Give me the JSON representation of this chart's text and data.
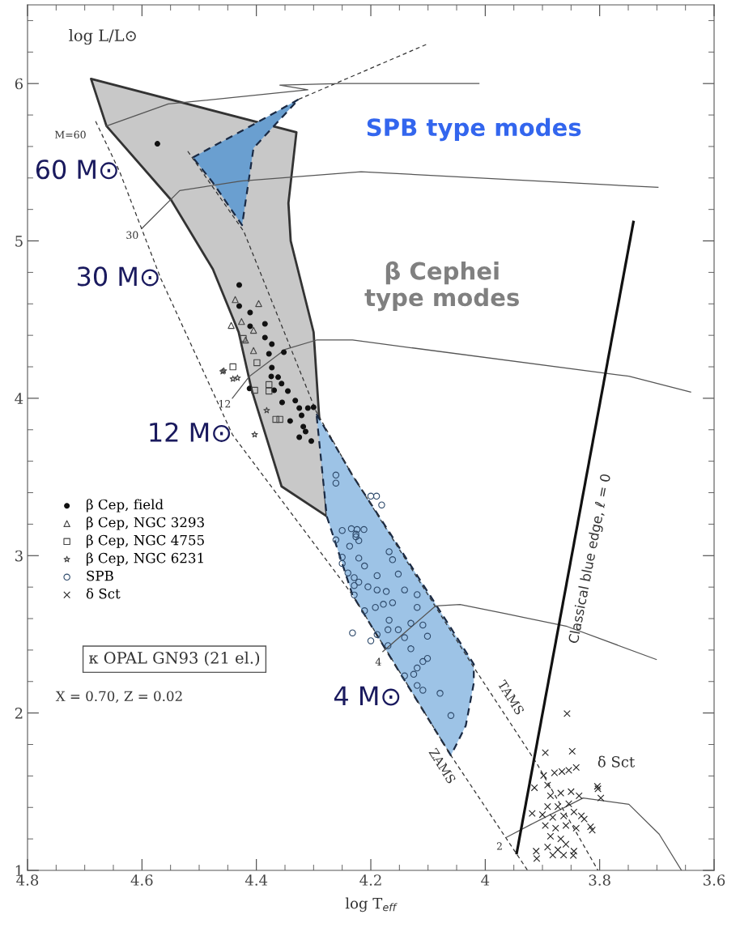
{
  "chart_data": {
    "type": "scatter",
    "xlabel": "log T$_{eff}$",
    "ylabel": "log L/L⊙",
    "xlim": [
      4.8,
      3.6
    ],
    "ylim": [
      1,
      6.5
    ],
    "xticks": [
      4.8,
      4.6,
      4.4,
      4.2,
      4,
      3.8,
      3.6
    ],
    "yticks": [
      1,
      2,
      3,
      4,
      5,
      6
    ],
    "legend": "left",
    "series": [
      {
        "type": "area",
        "color": "#c8c8c8",
        "line_style": "solid",
        "x": [
          4.689,
          4.33,
          4.344,
          4.34,
          4.3,
          4.291,
          4.277,
          4.356,
          4.408,
          4.431,
          4.476,
          4.549,
          4.662
        ],
        "values": [
          6.03,
          5.69,
          5.24,
          5.0,
          4.42,
          3.92,
          3.25,
          3.44,
          4.05,
          4.42,
          4.82,
          5.26,
          5.73
        ]
      },
      {
        "type": "area",
        "color": "#9dc3e6",
        "line_style": "dashed",
        "x": [
          4.295,
          4.277,
          4.232,
          4.15,
          4.06,
          4.034,
          4.02,
          4.02,
          4.034,
          4.06,
          4.15,
          4.232,
          4.277
        ],
        "values": [
          3.9,
          3.79,
          3.51,
          3.05,
          2.54,
          2.39,
          2.31,
          2.19,
          1.92,
          1.73,
          2.26,
          2.75,
          3.25
        ]
      },
      {
        "type": "area",
        "color": "#6a9fd0",
        "line_style": "dashed",
        "x": [
          4.511,
          4.476,
          4.425,
          4.405,
          4.326,
          4.405,
          4.425,
          4.476
        ],
        "values": [
          5.53,
          5.6,
          5.7,
          5.74,
          5.9,
          5.59,
          5.1,
          5.37
        ]
      },
      {
        "type": "line",
        "color": "#333333",
        "line_style": "dashed",
        "x": [
          4.681,
          4.639,
          4.567,
          4.442,
          4.232,
          4.06,
          3.926
        ],
        "values": [
          5.76,
          5.44,
          4.76,
          3.77,
          2.75,
          1.73,
          1.0
        ]
      },
      {
        "type": "line",
        "color": "#333333",
        "line_style": "dashed",
        "x": [
          4.52,
          4.422,
          4.296,
          4.232,
          4.02,
          3.91,
          3.803
        ],
        "values": [
          5.57,
          5.06,
          3.92,
          3.51,
          2.29,
          1.68,
          1.0
        ]
      },
      {
        "type": "line",
        "color": "#333333",
        "line_style": "dashed",
        "x": [
          4.326,
          4.102
        ],
        "values": [
          5.9,
          6.25
        ]
      },
      {
        "type": "line",
        "color": "#555555",
        "line_style": "solid",
        "x": [
          4.662,
          4.554,
          4.31,
          4.359,
          4.25,
          4.011
        ],
        "values": [
          5.73,
          5.87,
          5.96,
          5.99,
          6.0,
          6.0
        ]
      },
      {
        "type": "line",
        "color": "#555555",
        "line_style": "solid",
        "x": [
          4.6,
          4.534,
          4.427,
          4.217,
          3.698
        ],
        "values": [
          5.08,
          5.32,
          5.38,
          5.44,
          5.34
        ]
      },
      {
        "type": "line",
        "color": "#555555",
        "line_style": "solid",
        "x": [
          4.442,
          4.412,
          4.35,
          4.295,
          4.232,
          3.749,
          3.641
        ],
        "values": [
          4.0,
          4.14,
          4.31,
          4.37,
          4.37,
          4.14,
          4.04
        ]
      },
      {
        "type": "line",
        "color": "#555555",
        "line_style": "solid",
        "x": [
          4.179,
          4.087,
          4.044,
          3.963,
          3.857,
          3.701
        ],
        "values": [
          2.39,
          2.68,
          2.69,
          2.63,
          2.55,
          2.34
        ]
      },
      {
        "type": "line",
        "color": "#555555",
        "line_style": "solid",
        "x": [
          3.963,
          3.921,
          3.829,
          3.749,
          3.696,
          3.657
        ],
        "values": [
          1.21,
          1.29,
          1.46,
          1.42,
          1.23,
          1.0
        ]
      },
      {
        "type": "line",
        "color": "#111111",
        "line_style": "solid",
        "x": [
          3.945,
          3.741
        ],
        "values": [
          1.11,
          5.12
        ]
      },
      {
        "name": "β Cep, field",
        "marker": "circle",
        "color": "#111111",
        "x": [
          4.573,
          4.43,
          4.43,
          4.411,
          4.411,
          4.385,
          4.385,
          4.373,
          4.378,
          4.352,
          4.373,
          4.374,
          4.362,
          4.356,
          4.369,
          4.345,
          4.355,
          4.332,
          4.325,
          4.31,
          4.341,
          4.321,
          4.318,
          4.314,
          4.3,
          4.325,
          4.304,
          4.412
        ],
        "values": [
          5.617,
          4.72,
          4.586,
          4.545,
          4.458,
          4.473,
          4.386,
          4.344,
          4.283,
          4.293,
          4.195,
          4.139,
          4.134,
          4.093,
          4.051,
          4.046,
          3.974,
          3.985,
          3.938,
          3.938,
          3.856,
          3.892,
          3.82,
          3.789,
          3.943,
          3.753,
          3.728,
          4.062
        ]
      },
      {
        "name": "β Cep, NGC 3293",
        "marker": "triangle",
        "color": "#444444",
        "x": [
          4.437,
          4.396,
          4.426,
          4.444,
          4.405,
          4.405,
          4.419
        ],
        "values": [
          4.627,
          4.602,
          4.488,
          4.463,
          4.432,
          4.303,
          4.37
        ]
      },
      {
        "name": "β Cep, NGC 4755",
        "marker": "square",
        "color": "#444444",
        "x": [
          4.423,
          4.441,
          4.399,
          4.403,
          4.378,
          4.378,
          4.366,
          4.359
        ],
        "values": [
          4.38,
          4.2,
          4.226,
          4.051,
          4.087,
          4.046,
          3.866,
          3.866
        ]
      },
      {
        "name": "β Cep, NGC 6231",
        "marker": "star",
        "color": "#444444",
        "x": [
          4.457,
          4.441,
          4.433,
          4.382,
          4.403,
          4.459
        ],
        "values": [
          4.175,
          4.123,
          4.129,
          3.923,
          3.769,
          4.17
        ]
      },
      {
        "name": "SPB",
        "marker": "circle",
        "color": "#2e4a6b",
        "x": [
          4.2,
          4.19,
          4.181,
          4.224,
          4.212,
          4.226,
          4.221,
          4.168,
          4.162,
          4.221,
          4.211,
          4.152,
          4.189,
          4.221,
          4.205,
          4.189,
          4.173,
          4.141,
          4.119,
          4.178,
          4.162,
          4.192,
          4.211,
          4.119,
          4.168,
          4.13,
          4.109,
          4.17,
          4.152,
          4.189,
          4.141,
          4.101,
          4.2,
          4.17,
          4.13,
          4.101,
          4.109,
          4.119,
          4.141,
          4.125,
          4.119,
          4.109,
          4.079,
          4.06,
          4.232,
          4.261,
          4.261,
          4.25,
          4.261,
          4.234,
          4.226,
          4.237,
          4.25,
          4.25,
          4.24,
          4.229,
          4.229,
          4.229
        ],
        "values": [
          3.378,
          3.378,
          3.322,
          3.166,
          3.166,
          3.136,
          3.095,
          3.025,
          2.974,
          2.984,
          2.934,
          2.883,
          2.873,
          2.832,
          2.802,
          2.782,
          2.772,
          2.782,
          2.752,
          2.691,
          2.701,
          2.671,
          2.65,
          2.671,
          2.59,
          2.57,
          2.559,
          2.529,
          2.529,
          2.499,
          2.479,
          2.488,
          2.459,
          2.428,
          2.408,
          2.347,
          2.327,
          2.286,
          2.236,
          2.246,
          2.175,
          2.145,
          2.125,
          1.984,
          2.509,
          3.512,
          3.461,
          3.16,
          3.1,
          3.171,
          3.12,
          3.06,
          2.99,
          2.95,
          2.89,
          2.86,
          2.81,
          2.75
        ]
      },
      {
        "name": "δ Sct",
        "marker": "cross",
        "color": "#222222",
        "x": [
          3.857,
          3.848,
          3.895,
          3.841,
          3.854,
          3.866,
          3.879,
          3.898,
          3.804,
          3.798,
          3.914,
          3.891,
          3.918,
          3.832,
          3.816,
          3.911,
          3.845,
          3.886,
          3.868,
          3.85,
          3.836,
          3.891,
          3.873,
          3.854,
          3.882,
          3.863,
          3.845,
          3.895,
          3.877,
          3.859,
          3.886,
          3.868,
          3.891,
          3.873,
          3.882,
          3.863,
          3.9,
          3.841,
          3.859,
          3.91,
          3.846,
          3.803,
          3.827,
          3.813
        ],
        "values": [
          1.996,
          1.757,
          1.748,
          1.654,
          1.636,
          1.628,
          1.62,
          1.603,
          1.534,
          1.46,
          1.525,
          1.542,
          1.362,
          1.346,
          1.277,
          1.122,
          1.122,
          1.474,
          1.491,
          1.5,
          1.474,
          1.405,
          1.405,
          1.423,
          1.337,
          1.346,
          1.371,
          1.285,
          1.268,
          1.285,
          1.217,
          1.2,
          1.148,
          1.131,
          1.097,
          1.097,
          1.354,
          1.268,
          1.166,
          1.075,
          1.095,
          1.518,
          1.326,
          1.256
        ]
      }
    ],
    "annotations": [
      {
        "text": "60 M⊙",
        "x": 4.639,
        "y": 5.44
      },
      {
        "text": "30 M⊙",
        "x": 4.567,
        "y": 4.76
      },
      {
        "text": "12 M⊙",
        "x": 4.442,
        "y": 3.77
      },
      "4 M⊙",
      "M=60",
      "30",
      "12",
      "4",
      "2",
      "TAMS",
      "ZAMS",
      "Classical blue edge, ℓ = 0",
      "δ Sct",
      "SPB type modes",
      "β Cephei\ntype modes",
      "κ OPAL GN93 (21 el.)",
      "X = 0.70, Z = 0.02"
    ]
  }
}
